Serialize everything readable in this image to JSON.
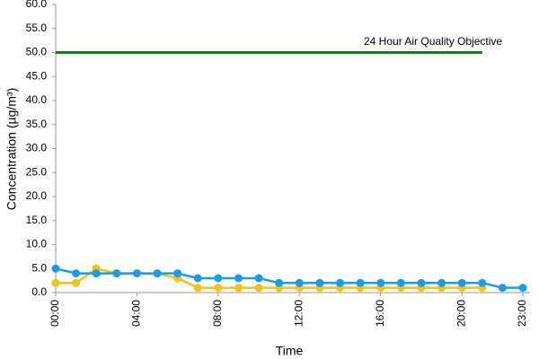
{
  "chart_data": {
    "type": "line",
    "y_label": "Concentration (µg/m³)",
    "x_label": "Time",
    "annotation": "24 Hour Air Quality Objective",
    "categories": [
      "00:00",
      null,
      null,
      null,
      "04:00",
      null,
      null,
      null,
      "08:00",
      null,
      null,
      null,
      "12:00",
      null,
      null,
      null,
      "16:00",
      null,
      null,
      null,
      "20:00",
      null,
      null,
      "23:00"
    ],
    "series": [
      {
        "color": "#1a7a1a",
        "marker": false,
        "values": [
          50,
          50,
          50,
          50,
          50,
          50,
          50,
          50,
          50,
          50,
          50,
          50,
          50,
          50,
          50,
          50,
          50,
          50,
          50,
          50,
          50,
          50,
          null,
          null
        ]
      },
      {
        "color": "#f0c419",
        "marker": true,
        "values": [
          2,
          2,
          5,
          4,
          4,
          4,
          3,
          1,
          1,
          1,
          1,
          1,
          1,
          1,
          1,
          1,
          1,
          1,
          1,
          1,
          1,
          1,
          null,
          null
        ]
      },
      {
        "color": "#1e9be8",
        "marker": true,
        "values": [
          5,
          4,
          4,
          4,
          4,
          4,
          4,
          3,
          3,
          3,
          3,
          2,
          2,
          2,
          2,
          2,
          2,
          2,
          2,
          2,
          2,
          2,
          1,
          1
        ]
      }
    ],
    "ylim": [
      0,
      60
    ],
    "yticks": [
      {
        "value": 0,
        "label": "0.0"
      },
      {
        "value": 5,
        "label": "5.0"
      },
      {
        "value": 10,
        "label": "10.0"
      },
      {
        "value": 15,
        "label": "15.0"
      },
      {
        "value": 20,
        "label": "20.0"
      },
      {
        "value": 25,
        "label": "25.0"
      },
      {
        "value": 30,
        "label": "30.0"
      },
      {
        "value": 35,
        "label": "35.0"
      },
      {
        "value": 40,
        "label": "40.0"
      },
      {
        "value": 45,
        "label": "45.0"
      },
      {
        "value": 50,
        "label": "50.0"
      },
      {
        "value": 55,
        "label": "55.0"
      },
      {
        "value": 60,
        "label": "60.0"
      }
    ]
  }
}
